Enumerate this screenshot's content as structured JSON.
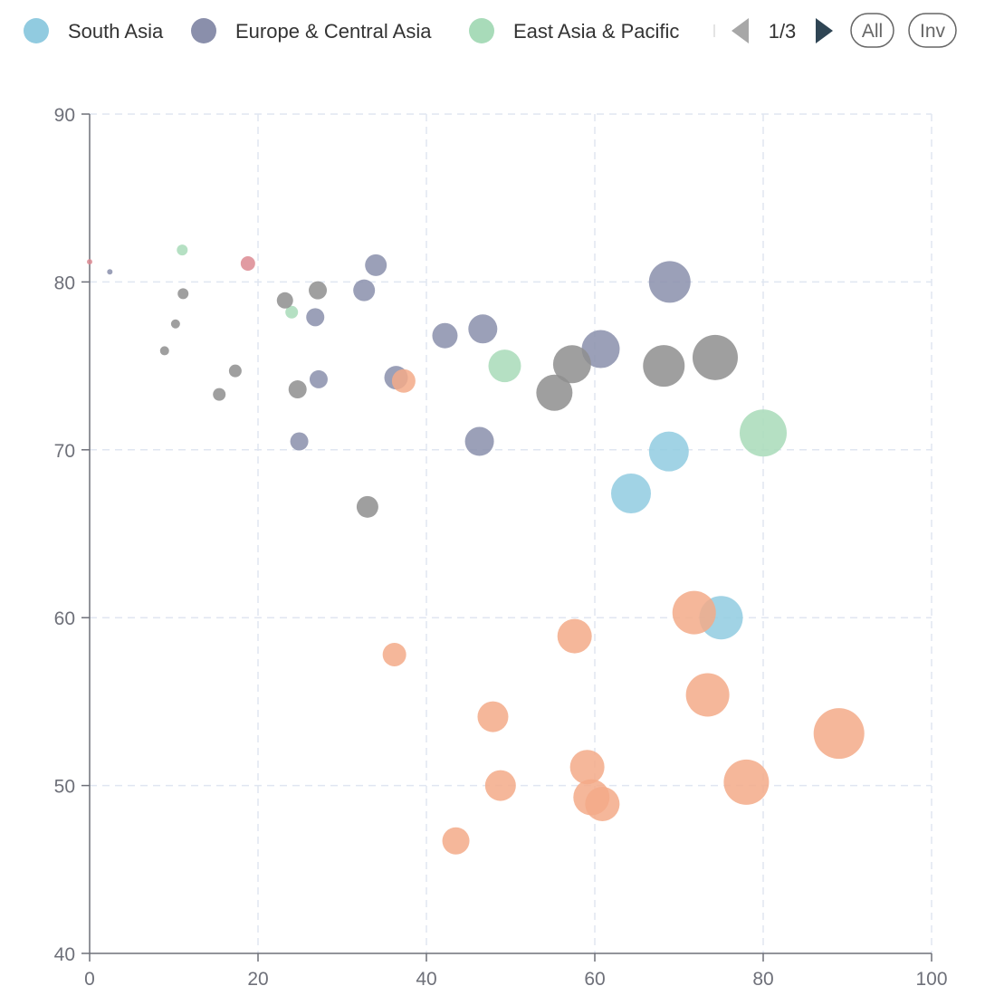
{
  "legend": {
    "items": [
      {
        "label": "South Asia",
        "color": "#91cbe0"
      },
      {
        "label": "Europe & Central Asia",
        "color": "#8a8fab"
      },
      {
        "label": "East Asia & Pacific",
        "color": "#a8dbb9"
      }
    ],
    "page_text": "1/3",
    "buttons": {
      "all": "All",
      "inv": "Inv"
    }
  },
  "chart_data": {
    "type": "scatter",
    "xlim": [
      0,
      100
    ],
    "ylim": [
      40,
      90
    ],
    "x_ticks": [
      "0",
      "20",
      "40",
      "60",
      "80",
      "100"
    ],
    "y_ticks": [
      "40",
      "50",
      "60",
      "70",
      "80",
      "90"
    ],
    "grid": true,
    "series": [
      {
        "name": "South Asia",
        "color": "#91cbe0",
        "points": [
          {
            "x": 64.3,
            "y": 67.4,
            "r": 22
          },
          {
            "x": 68.8,
            "y": 69.9,
            "r": 22
          },
          {
            "x": 75.0,
            "y": 60.0,
            "r": 24
          }
        ]
      },
      {
        "name": "Europe & Central Asia",
        "color": "#8a8fab",
        "points": [
          {
            "x": 2.4,
            "y": 80.6,
            "r": 3
          },
          {
            "x": 26.8,
            "y": 77.9,
            "r": 10
          },
          {
            "x": 27.2,
            "y": 74.2,
            "r": 10
          },
          {
            "x": 24.9,
            "y": 70.5,
            "r": 10
          },
          {
            "x": 32.6,
            "y": 79.5,
            "r": 12
          },
          {
            "x": 34.0,
            "y": 81.0,
            "r": 12
          },
          {
            "x": 36.4,
            "y": 74.3,
            "r": 13
          },
          {
            "x": 42.2,
            "y": 76.8,
            "r": 14
          },
          {
            "x": 46.7,
            "y": 77.2,
            "r": 16
          },
          {
            "x": 46.3,
            "y": 70.5,
            "r": 16
          },
          {
            "x": 60.7,
            "y": 76.0,
            "r": 21
          },
          {
            "x": 68.9,
            "y": 80.0,
            "r": 23
          }
        ]
      },
      {
        "name": "East Asia & Pacific",
        "color": "#a8dbb9",
        "points": [
          {
            "x": 11.0,
            "y": 81.9,
            "r": 6
          },
          {
            "x": 24.0,
            "y": 78.2,
            "r": 7
          },
          {
            "x": 49.3,
            "y": 75.0,
            "r": 18
          },
          {
            "x": 80.0,
            "y": 71.0,
            "r": 26
          }
        ]
      },
      {
        "name": "",
        "color": "#f3aa88",
        "points": [
          {
            "x": 37.3,
            "y": 74.1,
            "r": 13
          },
          {
            "x": 36.2,
            "y": 57.8,
            "r": 13
          },
          {
            "x": 43.5,
            "y": 46.7,
            "r": 15
          },
          {
            "x": 47.9,
            "y": 54.1,
            "r": 17
          },
          {
            "x": 48.8,
            "y": 50.0,
            "r": 17
          },
          {
            "x": 57.6,
            "y": 58.9,
            "r": 19
          },
          {
            "x": 59.1,
            "y": 51.1,
            "r": 19
          },
          {
            "x": 59.6,
            "y": 49.3,
            "r": 20
          },
          {
            "x": 60.9,
            "y": 48.9,
            "r": 19
          },
          {
            "x": 71.8,
            "y": 60.3,
            "r": 24
          },
          {
            "x": 73.4,
            "y": 55.4,
            "r": 24
          },
          {
            "x": 78.0,
            "y": 50.2,
            "r": 25
          },
          {
            "x": 89.0,
            "y": 53.1,
            "r": 28
          }
        ]
      },
      {
        "name": "",
        "color": "#dc8a92",
        "points": [
          {
            "x": 0.0,
            "y": 81.2,
            "r": 3
          },
          {
            "x": 18.8,
            "y": 81.1,
            "r": 8
          }
        ]
      },
      {
        "name": "",
        "color": "#8e8e8e",
        "points": [
          {
            "x": 8.9,
            "y": 75.9,
            "r": 5
          },
          {
            "x": 10.2,
            "y": 77.5,
            "r": 5
          },
          {
            "x": 11.1,
            "y": 79.3,
            "r": 6
          },
          {
            "x": 15.4,
            "y": 73.3,
            "r": 7
          },
          {
            "x": 17.3,
            "y": 74.7,
            "r": 7
          },
          {
            "x": 23.2,
            "y": 78.9,
            "r": 9
          },
          {
            "x": 24.7,
            "y": 73.6,
            "r": 10
          },
          {
            "x": 27.1,
            "y": 79.5,
            "r": 10
          },
          {
            "x": 33.0,
            "y": 66.6,
            "r": 12
          },
          {
            "x": 55.2,
            "y": 73.4,
            "r": 20
          },
          {
            "x": 57.3,
            "y": 75.1,
            "r": 21
          },
          {
            "x": 68.2,
            "y": 75.0,
            "r": 23
          },
          {
            "x": 74.3,
            "y": 75.5,
            "r": 25
          }
        ]
      }
    ]
  }
}
